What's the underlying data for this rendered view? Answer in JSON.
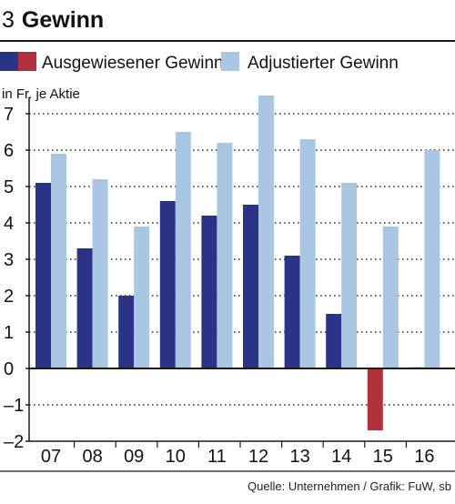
{
  "header": {
    "number": "3",
    "title": "Gewinn"
  },
  "source": "Quelle: Unternehmen / Grafik: FuW, sb",
  "colors": {
    "reported": "#2b3387",
    "reported_negative": "#b0313b",
    "adjusted": "#a9c6e3",
    "axis": "#1a1a1a",
    "grid": "#333333"
  },
  "chart_data": {
    "type": "bar",
    "ylabel": "in Fr. je Aktie",
    "categories": [
      "07",
      "08",
      "09",
      "10",
      "11",
      "12",
      "13",
      "14",
      "15",
      "16"
    ],
    "series": [
      {
        "name": "Ausgewiesener Gewinn",
        "values": [
          5.1,
          3.3,
          2.0,
          4.6,
          4.2,
          4.5,
          3.1,
          1.5,
          -1.7,
          0.03
        ]
      },
      {
        "name": "Adjustierter Gewinn",
        "values": [
          5.9,
          5.2,
          3.9,
          6.5,
          6.2,
          7.5,
          6.3,
          5.1,
          3.9,
          6.0
        ]
      }
    ],
    "yticks": [
      "7",
      "6",
      "5",
      "4",
      "3",
      "2",
      "1",
      "0",
      "–1",
      "–2"
    ],
    "ylim": [
      -2,
      7.5
    ],
    "grid": true,
    "legend": "top-left"
  }
}
